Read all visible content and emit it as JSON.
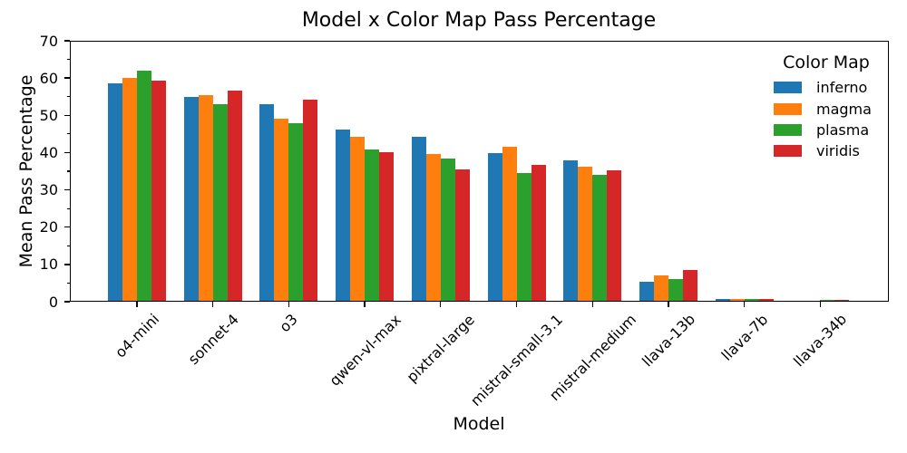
{
  "chart_data": {
    "type": "bar",
    "title": "Model x Color Map Pass Percentage",
    "xlabel": "Model",
    "ylabel": "Mean Pass Percentage",
    "ylim": [
      0,
      70
    ],
    "y_major_ticks": [
      0,
      10,
      20,
      30,
      40,
      50,
      60,
      70
    ],
    "y_minor_ticks": [
      5,
      15,
      25,
      35,
      45,
      55,
      65
    ],
    "grid": false,
    "legend": {
      "title": "Color Map",
      "position": "upper right",
      "frame": false
    },
    "categories": [
      "o4-mini",
      "sonnet-4",
      "o3",
      "qwen-vl-max",
      "pixtral-large",
      "mistral-small-3.1",
      "mistral-medium",
      "llava-13b",
      "llava-7b",
      "llava-34b"
    ],
    "series": [
      {
        "name": "inferno",
        "color": "#1f77b4",
        "values": [
          58.6,
          55.0,
          53.0,
          46.1,
          44.2,
          39.9,
          38.0,
          5.3,
          0.8,
          0.0
        ]
      },
      {
        "name": "magma",
        "color": "#ff7f0e",
        "values": [
          60.0,
          55.3,
          49.0,
          44.3,
          39.7,
          41.5,
          36.3,
          7.0,
          0.7,
          0.0
        ]
      },
      {
        "name": "plasma",
        "color": "#2ca02c",
        "values": [
          62.0,
          52.9,
          47.8,
          40.9,
          38.4,
          34.4,
          34.1,
          6.0,
          0.8,
          0.5
        ]
      },
      {
        "name": "viridis",
        "color": "#d62728",
        "values": [
          59.3,
          56.6,
          54.2,
          40.0,
          35.6,
          36.8,
          35.3,
          8.4,
          0.8,
          0.6
        ]
      }
    ]
  }
}
